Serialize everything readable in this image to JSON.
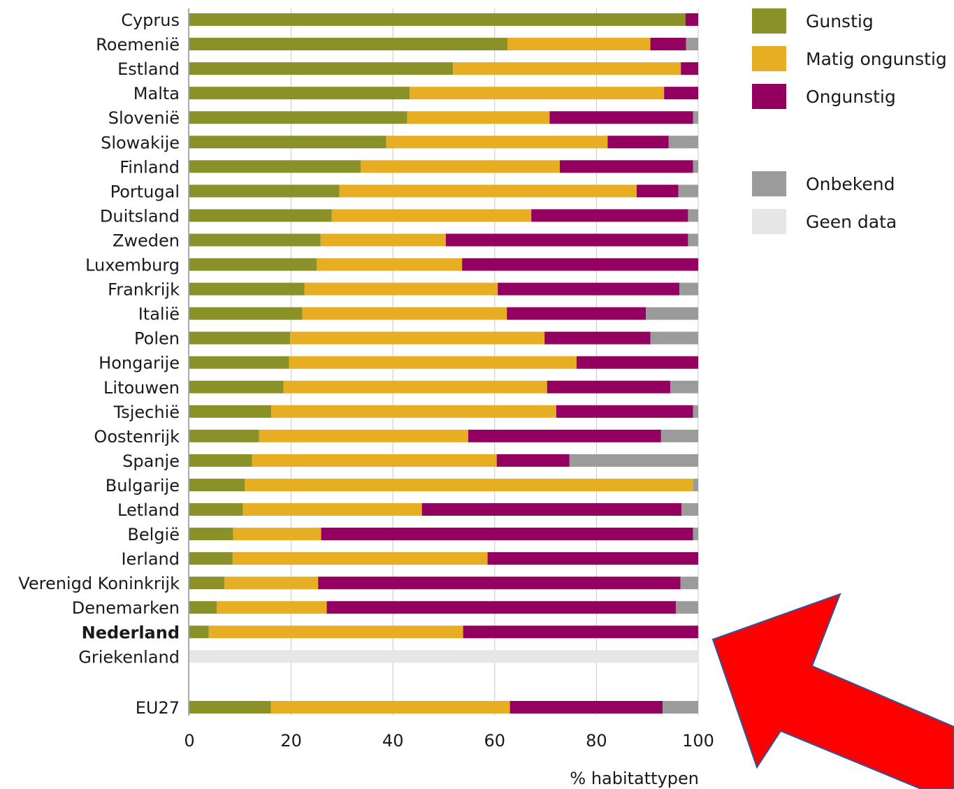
{
  "chart_data": {
    "type": "bar",
    "orientation": "horizontal",
    "stacked": true,
    "xlabel": "% habitattypen",
    "xlim": [
      0,
      100
    ],
    "xticks": [
      0,
      20,
      40,
      60,
      80,
      100
    ],
    "grid": true,
    "legend_placement": "top-right",
    "highlight_category": "Nederland",
    "colors": {
      "Gunstig": "#8a9128",
      "Matig ongunstig": "#e7ae24",
      "Ongunstig": "#930060",
      "Onbekend": "#9b9b9b",
      "Geen data": "#e6e6e6"
    },
    "legend": [
      "Gunstig",
      "Matig ongunstig",
      "Ongunstig",
      "Onbekend",
      "Geen data"
    ],
    "categories": [
      "Cyprus",
      "Roemenië",
      "Estland",
      "Malta",
      "Slovenië",
      "Slowakije",
      "Finland",
      "Portugal",
      "Duitsland",
      "Zweden",
      "Luxemburg",
      "Frankrijk",
      "Italië",
      "Polen",
      "Hongarije",
      "Litouwen",
      "Tsjechië",
      "Oostenrijk",
      "Spanje",
      "Bulgarije",
      "Letland",
      "België",
      "Ierland",
      "Verenigd Koninkrijk",
      "Denemarken",
      "Nederland",
      "Griekenland",
      "EU27"
    ],
    "series": [
      {
        "name": "Gunstig",
        "values": [
          97.5,
          62.5,
          51.8,
          43.3,
          42.8,
          38.7,
          33.7,
          29.5,
          28.0,
          25.8,
          25.0,
          22.6,
          22.2,
          19.8,
          19.6,
          18.5,
          16.1,
          13.7,
          12.3,
          10.9,
          10.5,
          8.6,
          8.5,
          6.9,
          5.4,
          3.8,
          0,
          16.0
        ]
      },
      {
        "name": "Matig ongunstig",
        "values": [
          0,
          28.1,
          44.8,
          50.0,
          28.0,
          43.5,
          39.1,
          58.4,
          39.2,
          24.6,
          28.6,
          38.0,
          40.2,
          50.0,
          56.5,
          51.8,
          56.0,
          41.1,
          48.1,
          88.1,
          35.2,
          17.3,
          50.1,
          18.4,
          21.6,
          50.0,
          0,
          47.0
        ]
      },
      {
        "name": "Ongunstig",
        "values": [
          2.5,
          7.0,
          3.4,
          6.7,
          28.2,
          12.0,
          26.2,
          8.2,
          30.8,
          47.6,
          46.4,
          35.7,
          27.3,
          20.8,
          23.9,
          24.2,
          26.9,
          37.9,
          14.3,
          0,
          51.0,
          73.1,
          41.4,
          71.2,
          68.6,
          46.2,
          0,
          30.0
        ]
      },
      {
        "name": "Onbekend",
        "values": [
          0,
          2.4,
          0,
          0,
          1.0,
          5.8,
          1.0,
          3.9,
          2.0,
          2.0,
          0,
          3.7,
          10.3,
          9.4,
          0,
          5.5,
          1.0,
          7.3,
          25.3,
          1.0,
          3.3,
          1.0,
          0,
          3.5,
          4.4,
          0,
          0,
          7.0
        ]
      },
      {
        "name": "Geen data",
        "values": [
          0,
          0,
          0,
          0,
          0,
          0,
          0,
          0,
          0,
          0,
          0,
          0,
          0,
          0,
          0,
          0,
          0,
          0,
          0,
          0,
          0,
          0,
          0,
          0,
          0,
          0,
          100,
          0
        ]
      }
    ]
  }
}
